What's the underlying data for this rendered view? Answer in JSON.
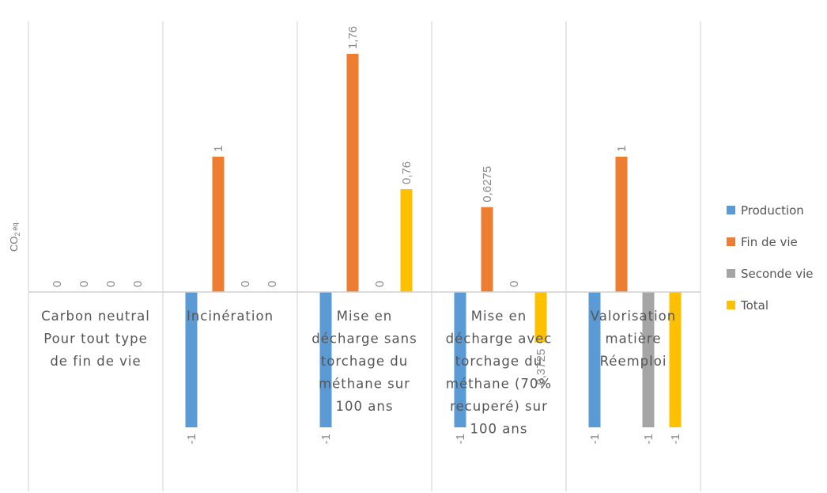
{
  "chart_data": {
    "type": "bar",
    "ylabel": "CO",
    "ylabel_sub": "2",
    "ylabel_suffix": "éq.",
    "ylim": [
      -1.5,
      2.0
    ],
    "grid": false,
    "legend_position": "right",
    "categories": [
      [
        "Carbon neutral",
        "Pour tout type",
        "de fin de vie"
      ],
      [
        "Incinération"
      ],
      [
        "Mise en",
        "décharge sans",
        "torchage du",
        "méthane sur",
        "100 ans"
      ],
      [
        "Mise en",
        "décharge avec",
        "torchage du",
        "méthane (70%",
        "recuperé) sur",
        "100 ans"
      ],
      [
        "Valorisation",
        "matière",
        "Réemploi"
      ]
    ],
    "series": [
      {
        "name": "Production",
        "color": "#5B9BD5",
        "values": [
          0,
          -1,
          -1,
          -1,
          -1
        ],
        "labels": [
          "0",
          "-1",
          "-1",
          "-1",
          "-1"
        ]
      },
      {
        "name": "Fin de vie",
        "color": "#ED7D31",
        "values": [
          0,
          1,
          1.76,
          0.6275,
          1
        ],
        "labels": [
          "0",
          "1",
          "1,76",
          "0,6275",
          "1"
        ]
      },
      {
        "name": "Seconde vie",
        "color": "#A5A5A5",
        "values": [
          0,
          0,
          0,
          0,
          -1
        ],
        "labels": [
          "0",
          "0",
          "0",
          "0",
          "-1"
        ]
      },
      {
        "name": "Total",
        "color": "#FFC000",
        "values": [
          0,
          0,
          0.76,
          -0.3725,
          -1
        ],
        "labels": [
          "0",
          "0",
          "0,76",
          "-0,3725",
          "-1"
        ]
      }
    ]
  }
}
